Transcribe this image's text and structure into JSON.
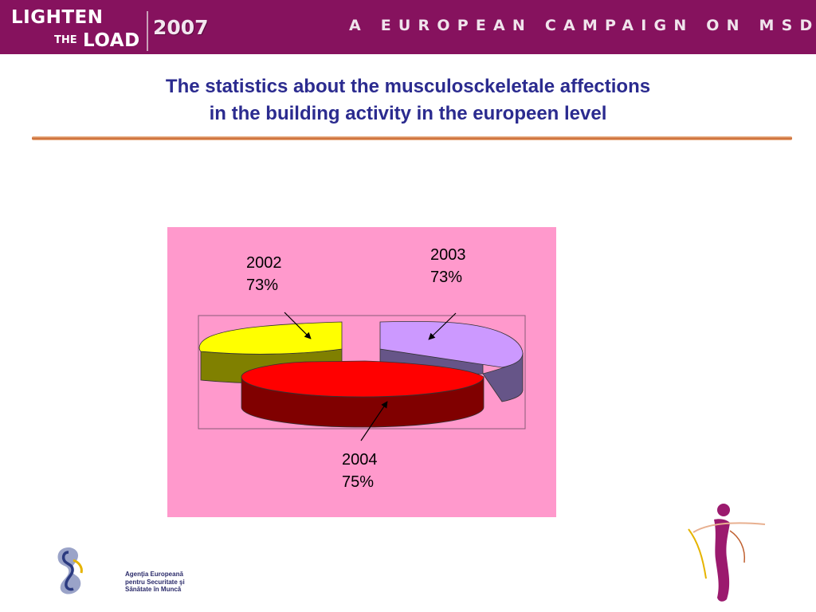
{
  "header": {
    "logo_line1": "LIGHTEN",
    "logo_line2a": "THE",
    "logo_line2b": "LOAD",
    "logo_year": "2007",
    "campaign": "A EUROPEAN CAMPAIGN ON MSDs",
    "background_color": "#86125e"
  },
  "title": {
    "line1": "The statistics about the musculosckeletale affections",
    "line2": "in the building activity in the europeen level",
    "color": "#2b2b8f"
  },
  "chart_data": {
    "type": "pie",
    "style": "3d-exploded",
    "background_color": "#ff99cc",
    "slices": [
      {
        "label": "2002",
        "value_label": "73%",
        "value": 73,
        "color": "#ffff00"
      },
      {
        "label": "2003",
        "value_label": "73%",
        "value": 73,
        "color": "#cc99ff"
      },
      {
        "label": "2004",
        "value_label": "75%",
        "value": 75,
        "color": "#ff0000"
      }
    ]
  },
  "footer": {
    "agency_line1": "Agenţia Europeană",
    "agency_line2": "pentru Securitate şi",
    "agency_line3": "Sănătate în Muncă"
  }
}
